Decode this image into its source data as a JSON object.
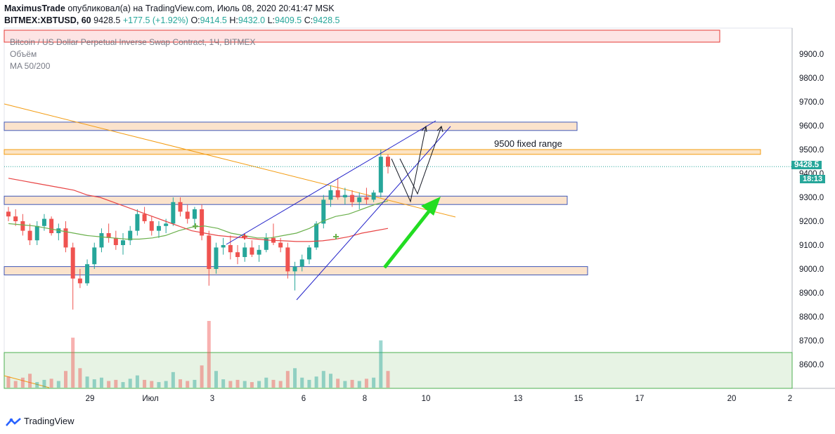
{
  "header": {
    "author": "MaximusTrade",
    "published_text": "опубликовал(а) на TradingView.com, Июль 08, 2020 20:41:47 MSK",
    "symbol": "BITMEX:XBTUSD, 60",
    "last": "9428.5",
    "change": "+177.5 (+1.92%)",
    "o_label": "O:",
    "o_value": "9414.5",
    "h_label": "H:",
    "h_value": "9432.0",
    "l_label": "L:",
    "l_value": "9409.5",
    "c_label": "C:",
    "c_value": "9428.5"
  },
  "legend": {
    "title": "Bitcoin / US Dollar Perpetual Inverse Swap Contract, 1Ч, BITMEX",
    "volume": "Объём",
    "ma": "MA 50/200"
  },
  "price_tag": {
    "price": "9428.5",
    "countdown": "18:13"
  },
  "annotation": "9500 fixed range",
  "footer": {
    "brand": "TradingView"
  },
  "colors": {
    "up": "#26a69a",
    "down": "#ef5350",
    "zone_fill": "#fbe3cc",
    "zone_border": "#4059b8",
    "orange_line": "#f39c12",
    "wedge": "#2121c9",
    "green_arrow": "#22dd22",
    "ma50": "#6ab04c",
    "ma200": "#e84545",
    "price_line": "#26a69a"
  },
  "chart_data": {
    "type": "candlestick",
    "y_axis": {
      "ylim": [
        8500,
        10050
      ],
      "ticks": [
        8600,
        8700,
        8800,
        8900,
        9000,
        9100,
        9200,
        9300,
        9400,
        9500,
        9600,
        9700,
        9800,
        9900
      ]
    },
    "x_axis": {
      "tick_labels": [
        "29",
        "Июл",
        "3",
        "6",
        "8",
        "10",
        "13",
        "15",
        "17",
        "20",
        "2"
      ]
    },
    "zones": [
      {
        "name": "red",
        "from": 9950,
        "to": 10000
      },
      {
        "name": "resistance",
        "from": 9580,
        "to": 9615
      },
      {
        "name": "fixed range",
        "from": 9480,
        "to": 9500
      },
      {
        "name": "support",
        "from": 9270,
        "to": 9305
      },
      {
        "name": "low",
        "from": 8975,
        "to": 9010
      }
    ],
    "last_price": 9428.5,
    "ohlc": [
      [
        9240,
        9260,
        9200,
        9220
      ],
      [
        9220,
        9250,
        9180,
        9200
      ],
      [
        9200,
        9230,
        9140,
        9160
      ],
      [
        9160,
        9190,
        9100,
        9120
      ],
      [
        9120,
        9200,
        9100,
        9180
      ],
      [
        9180,
        9230,
        9160,
        9210
      ],
      [
        9210,
        9220,
        9140,
        9150
      ],
      [
        9150,
        9190,
        9120,
        9170
      ],
      [
        9170,
        9200,
        9070,
        9090
      ],
      [
        9090,
        9110,
        8830,
        8960
      ],
      [
        8960,
        9000,
        8920,
        8940
      ],
      [
        8940,
        9040,
        8930,
        9020
      ],
      [
        9020,
        9110,
        9000,
        9090
      ],
      [
        9090,
        9170,
        9070,
        9150
      ],
      [
        9150,
        9190,
        9110,
        9130
      ],
      [
        9130,
        9160,
        9080,
        9100
      ],
      [
        9100,
        9150,
        9060,
        9120
      ],
      [
        9120,
        9180,
        9100,
        9160
      ],
      [
        9160,
        9250,
        9140,
        9230
      ],
      [
        9230,
        9260,
        9190,
        9200
      ],
      [
        9200,
        9220,
        9140,
        9160
      ],
      [
        9160,
        9200,
        9130,
        9180
      ],
      [
        9180,
        9210,
        9150,
        9190
      ],
      [
        9190,
        9300,
        9180,
        9280
      ],
      [
        9280,
        9300,
        9220,
        9240
      ],
      [
        9240,
        9270,
        9190,
        9210
      ],
      [
        9210,
        9260,
        9180,
        9250
      ],
      [
        9250,
        9270,
        9120,
        9140
      ],
      [
        9140,
        9160,
        8930,
        9000
      ],
      [
        9000,
        9110,
        8980,
        9090
      ],
      [
        9090,
        9130,
        9060,
        9100
      ],
      [
        9100,
        9140,
        9040,
        9070
      ],
      [
        9070,
        9100,
        9020,
        9050
      ],
      [
        9050,
        9110,
        9030,
        9090
      ],
      [
        9090,
        9120,
        9050,
        9060
      ],
      [
        9060,
        9100,
        9030,
        9080
      ],
      [
        9080,
        9150,
        9070,
        9130
      ],
      [
        9130,
        9190,
        9100,
        9110
      ],
      [
        9110,
        9130,
        9070,
        9090
      ],
      [
        9090,
        9110,
        8960,
        8990
      ],
      [
        8990,
        9030,
        8910,
        9010
      ],
      [
        9010,
        9060,
        8990,
        9040
      ],
      [
        9040,
        9100,
        9020,
        9090
      ],
      [
        9090,
        9200,
        9080,
        9190
      ],
      [
        9190,
        9310,
        9170,
        9290
      ],
      [
        9290,
        9350,
        9260,
        9330
      ],
      [
        9330,
        9380,
        9290,
        9300
      ],
      [
        9300,
        9340,
        9270,
        9310
      ],
      [
        9310,
        9330,
        9260,
        9280
      ],
      [
        9280,
        9320,
        9250,
        9300
      ],
      [
        9300,
        9340,
        9270,
        9290
      ],
      [
        9290,
        9330,
        9280,
        9320
      ],
      [
        9320,
        9500,
        9300,
        9470
      ],
      [
        9470,
        9480,
        9400,
        9428.5
      ]
    ],
    "volume": [
      20,
      12,
      18,
      25,
      10,
      14,
      16,
      12,
      30,
      90,
      35,
      20,
      15,
      18,
      12,
      14,
      10,
      16,
      22,
      14,
      12,
      10,
      12,
      28,
      15,
      12,
      14,
      40,
      120,
      30,
      15,
      12,
      14,
      12,
      10,
      12,
      18,
      14,
      12,
      30,
      35,
      18,
      14,
      20,
      30,
      25,
      16,
      12,
      14,
      12,
      16,
      18,
      85,
      30
    ],
    "ma50_approx": [
      9190,
      9185,
      9180,
      9170,
      9160,
      9150,
      9140,
      9135,
      9130,
      9125,
      9125,
      9130,
      9140,
      9160,
      9175,
      9180,
      9170,
      9150,
      9140,
      9130,
      9130,
      9140,
      9150,
      9170,
      9200,
      9220,
      9230,
      9250,
      9270,
      9285
    ],
    "ma200_approx": [
      9380,
      9370,
      9360,
      9350,
      9340,
      9330,
      9310,
      9300,
      9280,
      9260,
      9240,
      9220,
      9200,
      9180,
      9160,
      9150,
      9140,
      9135,
      9130,
      9125,
      9120,
      9118,
      9115,
      9115,
      9118,
      9125,
      9135,
      9150,
      9160,
      9170
    ]
  }
}
